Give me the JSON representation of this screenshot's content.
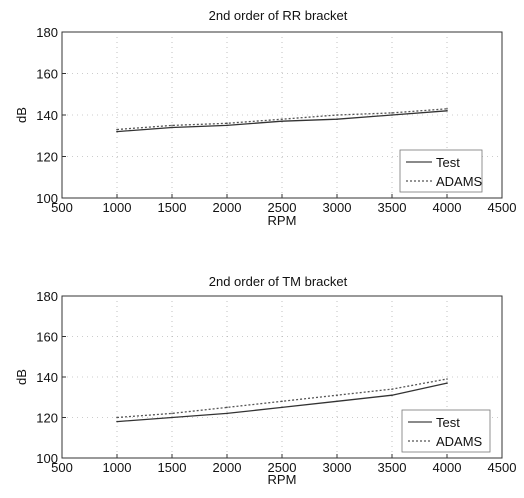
{
  "charts": [
    {
      "title": "2nd order of RR bracket",
      "xlabel": "RPM",
      "ylabel": "dB",
      "x_ticks": [
        "500",
        "1000",
        "1500",
        "2000",
        "2500",
        "3000",
        "3500",
        "4000",
        "4500"
      ],
      "y_ticks": [
        "100",
        "120",
        "140",
        "160",
        "180"
      ],
      "legend": [
        "Test",
        "ADAMS"
      ]
    },
    {
      "title": "2nd order of TM bracket",
      "xlabel": "RPM",
      "ylabel": "dB",
      "x_ticks": [
        "500",
        "1000",
        "1500",
        "2000",
        "2500",
        "3000",
        "3500",
        "4000",
        "4500"
      ],
      "y_ticks": [
        "100",
        "120",
        "140",
        "160",
        "180"
      ],
      "legend": [
        "Test",
        "ADAMS"
      ]
    }
  ],
  "chart_data": [
    {
      "type": "line",
      "title": "2nd order of RR bracket",
      "xlabel": "RPM",
      "ylabel": "dB",
      "xlim": [
        500,
        4500
      ],
      "ylim": [
        100,
        180
      ],
      "grid": true,
      "legend_position": "bottom-right",
      "series": [
        {
          "name": "Test",
          "x": [
            1000,
            1500,
            2000,
            2500,
            3000,
            3500,
            4000
          ],
          "y": [
            132,
            134,
            135,
            137,
            138,
            140,
            142
          ]
        },
        {
          "name": "ADAMS",
          "x": [
            1000,
            1500,
            2000,
            2500,
            3000,
            3500,
            4000
          ],
          "y": [
            133,
            135,
            136,
            138,
            140,
            141,
            143
          ]
        }
      ]
    },
    {
      "type": "line",
      "title": "2nd order of TM bracket",
      "xlabel": "RPM",
      "ylabel": "dB",
      "xlim": [
        500,
        4500
      ],
      "ylim": [
        100,
        180
      ],
      "grid": true,
      "legend_position": "bottom-right",
      "series": [
        {
          "name": "Test",
          "x": [
            1000,
            1500,
            2000,
            2500,
            3000,
            3500,
            4000
          ],
          "y": [
            118,
            120,
            122,
            125,
            128,
            131,
            137
          ]
        },
        {
          "name": "ADAMS",
          "x": [
            1000,
            1500,
            2000,
            2500,
            3000,
            3500,
            4000
          ],
          "y": [
            120,
            122,
            125,
            128,
            131,
            134,
            139
          ]
        }
      ]
    }
  ]
}
